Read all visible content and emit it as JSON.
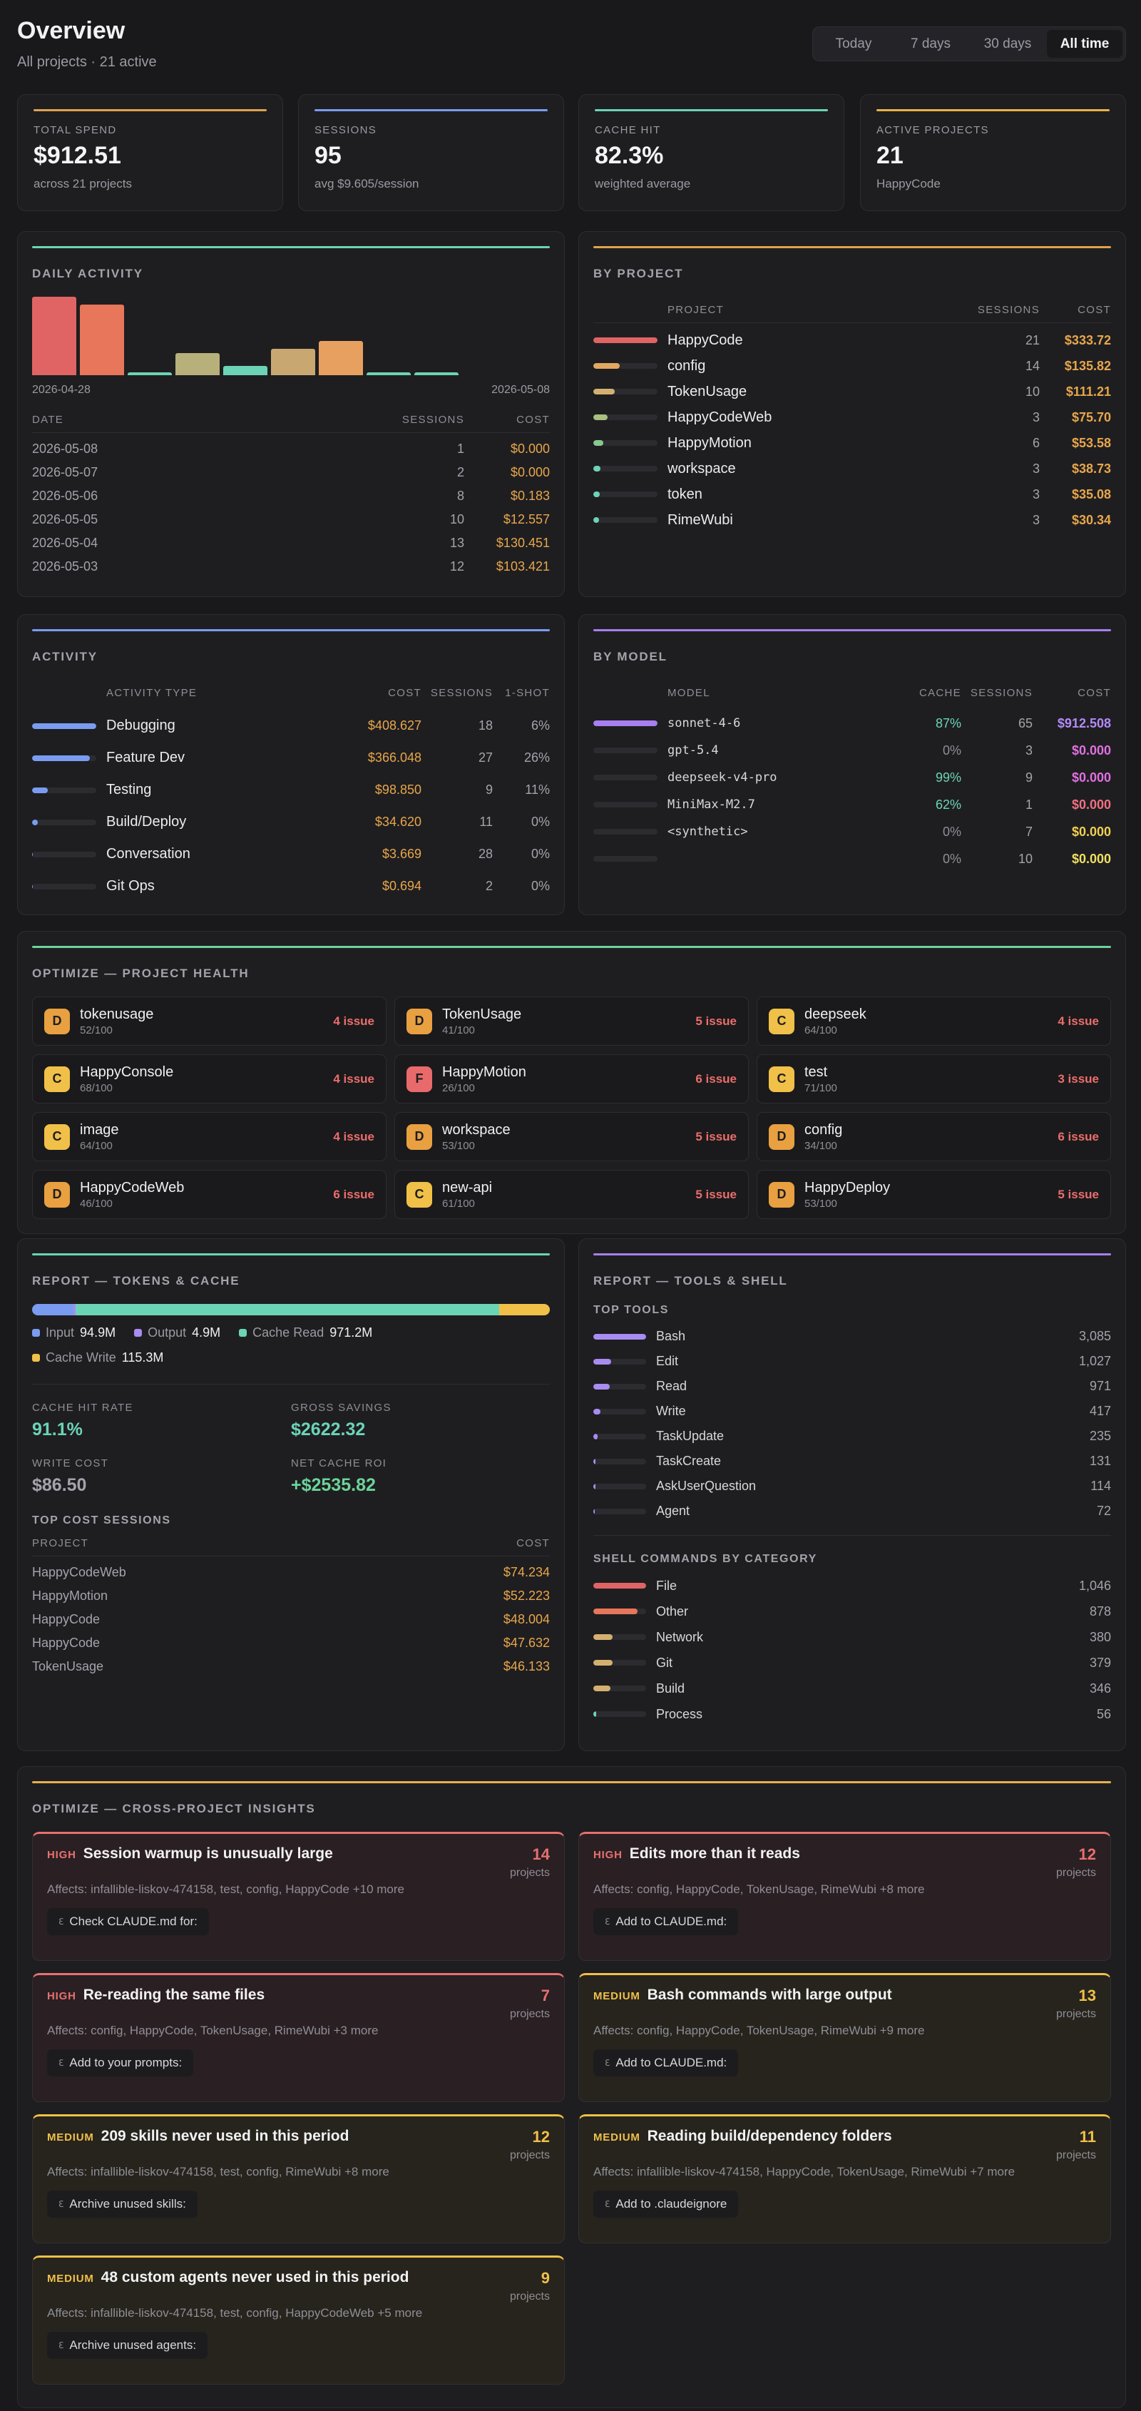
{
  "header": {
    "title": "Overview",
    "subtitle": "All projects · 21 active"
  },
  "time_ranges": [
    "Today",
    "7 days",
    "30 days",
    "All time"
  ],
  "active_range_index": 3,
  "stats": [
    {
      "label": "TOTAL SPEND",
      "value": "$912.51",
      "note": "across 21 projects",
      "color": "#e0a24f"
    },
    {
      "label": "SESSIONS",
      "value": 95,
      "note": "avg $9.605/session",
      "color": "#7a9cf0"
    },
    {
      "label": "CACHE HIT",
      "value": "82.3%",
      "note": "weighted average",
      "color": "#6cd4b6"
    },
    {
      "label": "ACTIVE PROJECTS",
      "value": 21,
      "note": "HappyCode",
      "color": "#e8b04a"
    }
  ],
  "daily_activity": {
    "title": "DAILY ACTIVITY",
    "color": "#6cd4b6",
    "bars": [
      {
        "value": 100,
        "color": "#e06464"
      },
      {
        "value": 90,
        "color": "#e8765a"
      },
      {
        "value": 4,
        "color": "#6cd4b6"
      },
      {
        "value": 28,
        "color": "#b8b07a"
      },
      {
        "value": 12,
        "color": "#6cd4b6"
      },
      {
        "value": 34,
        "color": "#c8a870"
      },
      {
        "value": 44,
        "color": "#e8a060"
      },
      {
        "value": 4,
        "color": "#6cd4b6"
      },
      {
        "value": 4,
        "color": "#6cd4b6"
      }
    ],
    "start_label": "2026-04-28",
    "end_label": "2026-05-08",
    "columns": [
      "DATE",
      "SESSIONS",
      "COST"
    ],
    "rows": [
      {
        "date": "2026-05-08",
        "sessions": 1,
        "cost": "$0.000"
      },
      {
        "date": "2026-05-07",
        "sessions": 2,
        "cost": "$0.000"
      },
      {
        "date": "2026-05-06",
        "sessions": 8,
        "cost": "$0.183"
      },
      {
        "date": "2026-05-05",
        "sessions": 10,
        "cost": "$12.557"
      },
      {
        "date": "2026-05-04",
        "sessions": 13,
        "cost": "$130.451"
      },
      {
        "date": "2026-05-03",
        "sessions": 12,
        "cost": "$103.421"
      }
    ]
  },
  "by_project": {
    "title": "BY PROJECT",
    "color": "#e0a24f",
    "columns": [
      "PROJECT",
      "SESSIONS",
      "COST"
    ],
    "rows": [
      {
        "name": "HappyCode",
        "sessions": 21,
        "cost": 333.72,
        "cost_label": "$333.72",
        "color": "#e06464"
      },
      {
        "name": "config",
        "sessions": 14,
        "cost": 135.82,
        "cost_label": "$135.82",
        "color": "#e0a860"
      },
      {
        "name": "TokenUsage",
        "sessions": 10,
        "cost": 111.21,
        "cost_label": "$111.21",
        "color": "#d4b070"
      },
      {
        "name": "HappyCodeWeb",
        "sessions": 3,
        "cost": 75.7,
        "cost_label": "$75.70",
        "color": "#a8c080"
      },
      {
        "name": "HappyMotion",
        "sessions": 6,
        "cost": 53.58,
        "cost_label": "$53.58",
        "color": "#88c890"
      },
      {
        "name": "workspace",
        "sessions": 3,
        "cost": 38.73,
        "cost_label": "$38.73",
        "color": "#6cd4b6"
      },
      {
        "name": "token",
        "sessions": 3,
        "cost": 35.08,
        "cost_label": "$35.08",
        "color": "#6cd4b6"
      },
      {
        "name": "RimeWubi",
        "sessions": 3,
        "cost": 30.34,
        "cost_label": "$30.34",
        "color": "#6cd4b6"
      }
    ]
  },
  "activity": {
    "title": "ACTIVITY",
    "color": "#7a9cf0",
    "columns": [
      "ACTIVITY TYPE",
      "COST",
      "SESSIONS",
      "1-SHOT"
    ],
    "rows": [
      {
        "name": "Debugging",
        "cost": 408.627,
        "cost_label": "$408.627",
        "sessions": 18,
        "one_shot": "6%"
      },
      {
        "name": "Feature Dev",
        "cost": 366.048,
        "cost_label": "$366.048",
        "sessions": 27,
        "one_shot": "26%"
      },
      {
        "name": "Testing",
        "cost": 98.85,
        "cost_label": "$98.850",
        "sessions": 9,
        "one_shot": "11%"
      },
      {
        "name": "Build/Deploy",
        "cost": 34.62,
        "cost_label": "$34.620",
        "sessions": 11,
        "one_shot": "0%"
      },
      {
        "name": "Conversation",
        "cost": 3.669,
        "cost_label": "$3.669",
        "sessions": 28,
        "one_shot": "0%"
      },
      {
        "name": "Git Ops",
        "cost": 0.694,
        "cost_label": "$0.694",
        "sessions": 2,
        "one_shot": "0%"
      }
    ]
  },
  "by_model": {
    "title": "BY MODEL",
    "color": "#a77ff0",
    "columns": [
      "MODEL",
      "CACHE",
      "SESSIONS",
      "COST"
    ],
    "rows": [
      {
        "name": "sonnet-4-6",
        "cache": "87%",
        "cache_color": "#6cd4b6",
        "sessions": 65,
        "cost": 912.508,
        "cost_label": "$912.508",
        "cost_color": "#b48af5"
      },
      {
        "name": "gpt-5.4",
        "cache": "0%",
        "cache_color": "#8e8e96",
        "sessions": 3,
        "cost": 0,
        "cost_label": "$0.000",
        "cost_color": "#e070e0"
      },
      {
        "name": "deepseek-v4-pro",
        "cache": "99%",
        "cache_color": "#6cd4b6",
        "sessions": 9,
        "cost": 0,
        "cost_label": "$0.000",
        "cost_color": "#e070e0"
      },
      {
        "name": "MiniMax-M2.7",
        "cache": "62%",
        "cache_color": "#6cd4b6",
        "sessions": 1,
        "cost": 0,
        "cost_label": "$0.000",
        "cost_color": "#f07080"
      },
      {
        "name": "<synthetic>",
        "cache": "0%",
        "cache_color": "#8e8e96",
        "sessions": 7,
        "cost": 0,
        "cost_label": "$0.000",
        "cost_color": "#f0d050"
      },
      {
        "name": null,
        "cache": "0%",
        "cache_color": "#8e8e96",
        "sessions": 10,
        "cost": 0,
        "cost_label": "$0.000",
        "cost_color": "#f0e060"
      }
    ]
  },
  "health": {
    "title": "OPTIMIZE — PROJECT HEALTH",
    "color": "#6cd49a",
    "items": [
      {
        "grade": "D",
        "name": "tokenusage",
        "score": "52/100",
        "issues": "4 issue",
        "grade_color": "#e8a040"
      },
      {
        "grade": "D",
        "name": "TokenUsage",
        "score": "41/100",
        "issues": "5 issue",
        "grade_color": "#e8a040"
      },
      {
        "grade": "C",
        "name": "deepseek",
        "score": "64/100",
        "issues": "4 issue",
        "grade_color": "#f0c048"
      },
      {
        "grade": "C",
        "name": "HappyConsole",
        "score": "68/100",
        "issues": "4 issue",
        "grade_color": "#f0c048"
      },
      {
        "grade": "F",
        "name": "HappyMotion",
        "score": "26/100",
        "issues": "6 issue",
        "grade_color": "#e86a6a"
      },
      {
        "grade": "C",
        "name": "test",
        "score": "71/100",
        "issues": "3 issue",
        "grade_color": "#f0c048"
      },
      {
        "grade": "C",
        "name": "image",
        "score": "64/100",
        "issues": "4 issue",
        "grade_color": "#f0c048"
      },
      {
        "grade": "D",
        "name": "workspace",
        "score": "53/100",
        "issues": "5 issue",
        "grade_color": "#e8a040"
      },
      {
        "grade": "D",
        "name": "config",
        "score": "34/100",
        "issues": "6 issue",
        "grade_color": "#e8a040"
      },
      {
        "grade": "D",
        "name": "HappyCodeWeb",
        "score": "46/100",
        "issues": "6 issue",
        "grade_color": "#e8a040"
      },
      {
        "grade": "C",
        "name": "new-api",
        "score": "61/100",
        "issues": "5 issue",
        "grade_color": "#f0c048"
      },
      {
        "grade": "D",
        "name": "HappyDeploy",
        "score": "53/100",
        "issues": "5 issue",
        "grade_color": "#e8a040"
      }
    ]
  },
  "tokens_report": {
    "title": "REPORT — TOKENS & CACHE",
    "color": "#6cd4b6",
    "segments": [
      {
        "name": "Input",
        "value": 94.9,
        "label": "94.9M",
        "color": "#7a9cf0"
      },
      {
        "name": "Output",
        "value": 4.9,
        "label": "4.9M",
        "color": "#a88cf0"
      },
      {
        "name": "Cache Read",
        "value": 971.2,
        "label": "971.2M",
        "color": "#6cd4b6"
      },
      {
        "name": "Cache Write",
        "value": 115.3,
        "label": "115.3M",
        "color": "#f0c048"
      }
    ],
    "metrics": [
      {
        "label": "CACHE HIT RATE",
        "value": "91.1%",
        "color": "#6cd4b6"
      },
      {
        "label": "GROSS SAVINGS",
        "value": "$2622.32",
        "color": "#6cd4b6"
      },
      {
        "label": "WRITE COST",
        "value": "$86.50",
        "color": "#a3a3ab"
      },
      {
        "label": "NET CACHE ROI",
        "value": "+$2535.82",
        "color": "#6cd49a"
      }
    ],
    "sessions_title": "TOP COST SESSIONS",
    "columns": [
      "PROJECT",
      "COST"
    ],
    "rows": [
      {
        "project": "HappyCodeWeb",
        "cost": "$74.234"
      },
      {
        "project": "HappyMotion",
        "cost": "$52.223"
      },
      {
        "project": "HappyCode",
        "cost": "$48.004"
      },
      {
        "project": "HappyCode",
        "cost": "$47.632"
      },
      {
        "project": "TokenUsage",
        "cost": "$46.133"
      }
    ]
  },
  "tools_report": {
    "title": "REPORT — TOOLS & SHELL",
    "color": "#a77ff0",
    "tools_title": "TOP TOOLS",
    "tools_color": "#a88cf0",
    "tools": [
      {
        "name": "Bash",
        "value": 3085,
        "label": "3,085"
      },
      {
        "name": "Edit",
        "value": 1027,
        "label": "1,027"
      },
      {
        "name": "Read",
        "value": 971,
        "label": "971"
      },
      {
        "name": "Write",
        "value": 417,
        "label": "417"
      },
      {
        "name": "TaskUpdate",
        "value": 235,
        "label": "235"
      },
      {
        "name": "TaskCreate",
        "value": 131,
        "label": "131"
      },
      {
        "name": "AskUserQuestion",
        "value": 114,
        "label": "114"
      },
      {
        "name": "Agent",
        "value": 72,
        "label": "72"
      }
    ],
    "shell_title": "SHELL COMMANDS BY CATEGORY",
    "shell": [
      {
        "name": "File",
        "value": 1046,
        "label": "1,046",
        "color": "#e06464"
      },
      {
        "name": "Other",
        "value": 878,
        "label": "878",
        "color": "#e8765a"
      },
      {
        "name": "Network",
        "value": 380,
        "label": "380",
        "color": "#d4b070"
      },
      {
        "name": "Git",
        "value": 379,
        "label": "379",
        "color": "#d4b070"
      },
      {
        "name": "Build",
        "value": 346,
        "label": "346",
        "color": "#d4b070"
      },
      {
        "name": "Process",
        "value": 56,
        "label": "56",
        "color": "#6cd4b6"
      }
    ]
  },
  "insights": {
    "title": "OPTIMIZE — CROSS-PROJECT INSIGHTS",
    "color": "#e8b04a",
    "unit": "projects",
    "items": [
      {
        "severity": "HIGH",
        "title": "Session warmup is unusually large",
        "count": 14,
        "affects": "Affects: infallible-liskov-474158, test, config, HappyCode +10 more",
        "action": "Check CLAUDE.md for:",
        "color": "#e87070",
        "background": "#2a1f22"
      },
      {
        "severity": "HIGH",
        "title": "Edits more than it reads",
        "count": 12,
        "affects": "Affects: config, HappyCode, TokenUsage, RimeWubi +8 more",
        "action": "Add to CLAUDE.md:",
        "color": "#e87070",
        "background": "#2a1f22"
      },
      {
        "severity": "HIGH",
        "title": "Re-reading the same files",
        "count": 7,
        "affects": "Affects: config, HappyCode, TokenUsage, RimeWubi +3 more",
        "action": "Add to your prompts:",
        "color": "#e87070",
        "background": "#2a1f22"
      },
      {
        "severity": "MEDIUM",
        "title": "Bash commands with large output",
        "count": 13,
        "affects": "Affects: config, HappyCode, TokenUsage, RimeWubi +9 more",
        "action": "Add to CLAUDE.md:",
        "color": "#f0c048",
        "background": "#27241d"
      },
      {
        "severity": "MEDIUM",
        "title": "209 skills never used in this period",
        "count": 12,
        "affects": "Affects: infallible-liskov-474158, test, config, RimeWubi +8 more",
        "action": "Archive unused skills:",
        "color": "#f0c048",
        "background": "#27241d"
      },
      {
        "severity": "MEDIUM",
        "title": "Reading build/dependency folders",
        "count": 11,
        "affects": "Affects: infallible-liskov-474158, HappyCode, TokenUsage, RimeWubi +7 more",
        "action": "Add to .claudeignore",
        "color": "#f0c048",
        "background": "#27241d"
      },
      {
        "severity": "MEDIUM",
        "title": "48 custom agents never used in this period",
        "count": 9,
        "affects": "Affects: infallible-liskov-474158, test, config, HappyCodeWeb +5 more",
        "action": "Archive unused agents:",
        "color": "#f0c048",
        "background": "#27241d"
      }
    ]
  }
}
